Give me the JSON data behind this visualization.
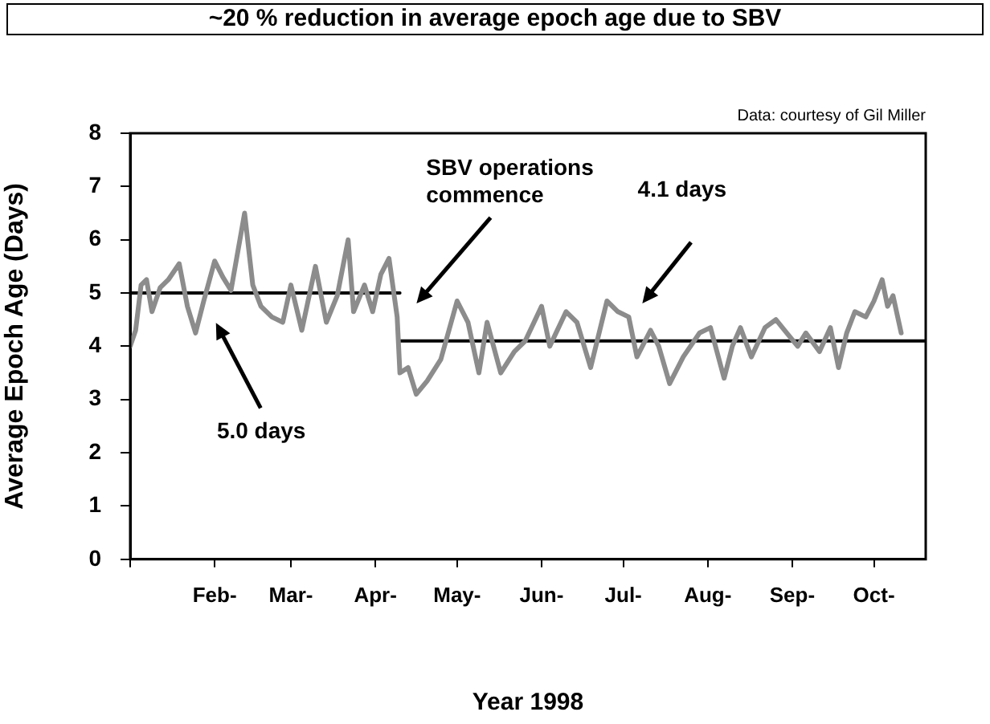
{
  "chart_data": {
    "type": "line",
    "title": "~20 % reduction in average epoch age due to SBV",
    "xlabel": "Year 1998",
    "ylabel": "Average Epoch Age (Days)",
    "x": [
      "1998-01-01",
      "1998-01-03",
      "1998-01-05",
      "1998-01-07",
      "1998-01-09",
      "1998-01-12",
      "1998-01-15",
      "1998-01-19",
      "1998-01-22",
      "1998-01-25",
      "1998-01-28",
      "1998-02-01",
      "1998-02-04",
      "1998-02-07",
      "1998-02-12",
      "1998-02-15",
      "1998-02-18",
      "1998-02-22",
      "1998-02-26",
      "1998-03-01",
      "1998-03-05",
      "1998-03-10",
      "1998-03-14",
      "1998-03-18",
      "1998-03-22",
      "1998-03-24",
      "1998-03-28",
      "1998-03-31",
      "1998-04-03",
      "1998-04-06",
      "1998-04-09",
      "1998-04-10",
      "1998-04-13",
      "1998-04-16",
      "1998-04-20",
      "1998-04-25",
      "1998-05-01",
      "1998-05-05",
      "1998-05-09",
      "1998-05-12",
      "1998-05-17",
      "1998-05-22",
      "1998-05-26",
      "1998-06-01",
      "1998-06-04",
      "1998-06-10",
      "1998-06-14",
      "1998-06-19",
      "1998-06-25",
      "1998-06-29",
      "1998-07-03",
      "1998-07-06",
      "1998-07-11",
      "1998-07-14",
      "1998-07-18",
      "1998-07-23",
      "1998-07-29",
      "1998-08-02",
      "1998-08-07",
      "1998-08-10",
      "1998-08-13",
      "1998-08-17",
      "1998-08-22",
      "1998-08-26",
      "1998-08-30",
      "1998-09-03",
      "1998-09-06",
      "1998-09-11",
      "1998-09-15",
      "1998-09-18",
      "1998-09-21",
      "1998-09-24",
      "1998-09-28",
      "1998-10-01",
      "1998-10-04",
      "1998-10-06",
      "1998-10-08",
      "1998-10-11"
    ],
    "series": [
      {
        "color": "#8c8c8c",
        "values": [
          4.0,
          4.3,
          5.15,
          5.25,
          4.65,
          5.1,
          5.25,
          5.55,
          4.75,
          4.25,
          4.85,
          5.6,
          5.3,
          5.05,
          6.5,
          5.15,
          4.75,
          4.55,
          4.45,
          5.15,
          4.3,
          5.5,
          4.45,
          4.95,
          6.0,
          4.65,
          5.15,
          4.65,
          5.35,
          5.65,
          4.55,
          3.5,
          3.6,
          3.1,
          3.35,
          3.75,
          4.85,
          4.45,
          3.5,
          4.45,
          3.5,
          3.9,
          4.1,
          4.75,
          4.0,
          4.65,
          4.45,
          3.6,
          4.85,
          4.65,
          4.55,
          3.8,
          4.3,
          4.0,
          3.3,
          3.8,
          4.25,
          4.35,
          3.4,
          4.0,
          4.35,
          3.8,
          4.35,
          4.5,
          4.25,
          4.0,
          4.25,
          3.9,
          4.35,
          3.6,
          4.25,
          4.65,
          4.55,
          4.85,
          5.25,
          4.75,
          4.95,
          4.25
        ]
      },
      {
        "color": "#000000",
        "x": [
          "1998-01-01",
          "1998-04-10"
        ],
        "values": [
          5.0,
          5.0
        ]
      },
      {
        "color": "#000000",
        "x": [
          "1998-04-10",
          "1998-10-20"
        ],
        "values": [
          4.1,
          4.1
        ]
      }
    ],
    "xlim": [
      "1998-01-01",
      "1998-10-20"
    ],
    "xticks": [
      {
        "value": "1998-01-01",
        "label": null
      },
      {
        "value": "1998-02-01",
        "label": "Feb-"
      },
      {
        "value": "1998-03-01",
        "label": "Mar-"
      },
      {
        "value": "1998-04-01",
        "label": "Apr-"
      },
      {
        "value": "1998-05-01",
        "label": "May-"
      },
      {
        "value": "1998-06-01",
        "label": "Jun-"
      },
      {
        "value": "1998-07-01",
        "label": "Jul-"
      },
      {
        "value": "1998-08-01",
        "label": "Aug-"
      },
      {
        "value": "1998-09-01",
        "label": "Sep-"
      },
      {
        "value": "1998-10-01",
        "label": "Oct-"
      }
    ],
    "ylim": [
      0,
      8
    ],
    "yticks": [
      0,
      1,
      2,
      3,
      4,
      5,
      6,
      7,
      8
    ],
    "grid": false,
    "legend": false,
    "marker": "none",
    "line_style": "solid",
    "annotations": [
      "Data: courtesy of Gil Miller",
      "SBV operations commence",
      "4.1 days",
      "5.0 days"
    ]
  }
}
